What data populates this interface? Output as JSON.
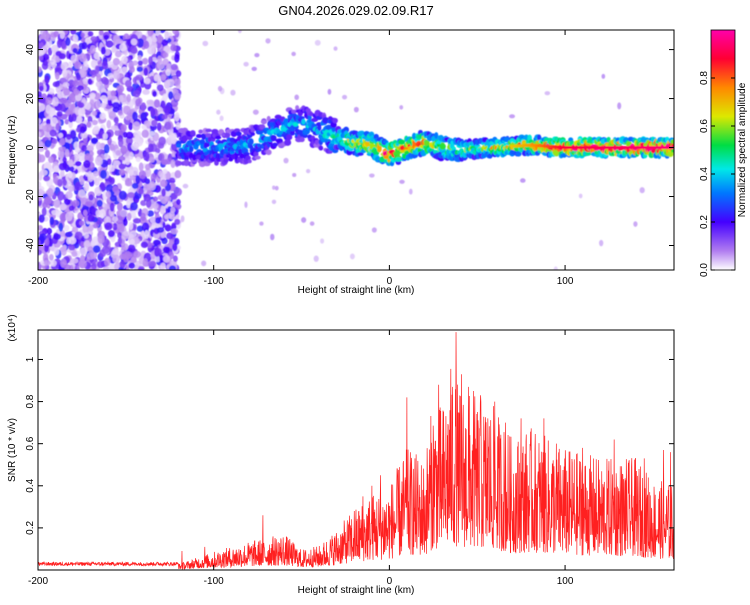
{
  "title": "GN04.2026.029.02.09.R17",
  "chart_data": [
    {
      "type": "heatmap",
      "title": "GN04.2026.029.02.09.R17",
      "xlabel": "Height of straight line (km)",
      "ylabel": "Frequency (Hz)",
      "xlim": [
        -200,
        162
      ],
      "ylim": [
        -50,
        48
      ],
      "xticks": [
        -200,
        -100,
        0,
        100
      ],
      "yticks": [
        -40,
        -20,
        0,
        20,
        40
      ],
      "colorbar": {
        "label": "Normalized spectral amplitude",
        "range": [
          0,
          1
        ],
        "ticks": [
          "0.0",
          "0.2",
          "0.4",
          "0.6",
          "0.8"
        ],
        "colormap": "rainbow",
        "colors": [
          "#ffffff",
          "#b07cf0",
          "#4400ff",
          "#0077ff",
          "#00e8e8",
          "#00dd44",
          "#dde800",
          "#ff8800",
          "#ff0033",
          "#ff00aa"
        ]
      },
      "features": [
        {
          "description": "scattered low-amplitude noise",
          "x_range": [
            -200,
            -120
          ],
          "y_range": [
            -50,
            48
          ],
          "amplitude": 0.15
        },
        {
          "description": "central band",
          "x_range": [
            -120,
            162
          ],
          "frequency_track": [
            [
              -120,
              0
            ],
            [
              -100,
              0
            ],
            [
              -80,
              1
            ],
            [
              -60,
              8
            ],
            [
              -50,
              10
            ],
            [
              -40,
              7
            ],
            [
              -30,
              4
            ],
            [
              -20,
              2
            ],
            [
              -10,
              1
            ],
            [
              0,
              -3
            ],
            [
              10,
              0
            ],
            [
              20,
              2
            ],
            [
              30,
              0
            ],
            [
              40,
              -1
            ],
            [
              60,
              0
            ],
            [
              80,
              1
            ],
            [
              100,
              0
            ],
            [
              162,
              0
            ]
          ],
          "amplitude": [
            [
              -120,
              0.3
            ],
            [
              -40,
              0.35
            ],
            [
              -20,
              0.6
            ],
            [
              0,
              0.8
            ],
            [
              40,
              0.5
            ],
            [
              80,
              0.7
            ],
            [
              100,
              0.85
            ],
            [
              162,
              0.9
            ]
          ]
        }
      ]
    },
    {
      "type": "line",
      "xlabel": "Height of straight line (km)",
      "ylabel": "SNR (10 * v/v)",
      "y_multiplier": "(x10⁴)",
      "xlim": [
        -200,
        162
      ],
      "ylim": [
        0,
        1.14
      ],
      "xticks": [
        -200,
        -100,
        0,
        100
      ],
      "yticks": [
        "0.2",
        "0.4",
        "0.6",
        "0.8",
        "1"
      ],
      "color": "#ff2020",
      "envelope": [
        [
          -200,
          0.03
        ],
        [
          -120,
          0.03
        ],
        [
          -110,
          0.06
        ],
        [
          -100,
          0.09
        ],
        [
          -80,
          0.14
        ],
        [
          -60,
          0.18
        ],
        [
          -50,
          0.1
        ],
        [
          -40,
          0.12
        ],
        [
          -30,
          0.2
        ],
        [
          -20,
          0.3
        ],
        [
          -10,
          0.38
        ],
        [
          0,
          0.42
        ],
        [
          10,
          0.6
        ],
        [
          20,
          0.55
        ],
        [
          25,
          0.85
        ],
        [
          30,
          0.8
        ],
        [
          35,
          1.0
        ],
        [
          40,
          0.9
        ],
        [
          50,
          0.85
        ],
        [
          60,
          0.8
        ],
        [
          70,
          0.65
        ],
        [
          80,
          0.7
        ],
        [
          100,
          0.6
        ],
        [
          120,
          0.55
        ],
        [
          140,
          0.55
        ],
        [
          150,
          0.45
        ],
        [
          162,
          0.42
        ]
      ],
      "peaks": [
        [
          10,
          0.82
        ],
        [
          -10,
          0.4
        ],
        [
          -72,
          0.26
        ],
        [
          -118,
          0.09
        ],
        [
          -105,
          0.11
        ],
        [
          -20,
          0.28
        ],
        [
          -15,
          0.35
        ],
        [
          -5,
          0.45
        ],
        [
          28,
          0.88
        ],
        [
          36,
          0.87
        ],
        [
          38,
          1.13
        ],
        [
          41,
          0.93
        ],
        [
          45,
          0.87
        ],
        [
          48,
          0.85
        ],
        [
          52,
          0.83
        ],
        [
          56,
          0.72
        ],
        [
          60,
          0.8
        ],
        [
          66,
          0.7
        ],
        [
          75,
          0.72
        ],
        [
          88,
          0.72
        ],
        [
          95,
          0.6
        ],
        [
          110,
          0.58
        ],
        [
          128,
          0.62
        ],
        [
          145,
          0.53
        ],
        [
          156,
          0.57
        ],
        [
          160,
          0.56
        ]
      ]
    }
  ]
}
